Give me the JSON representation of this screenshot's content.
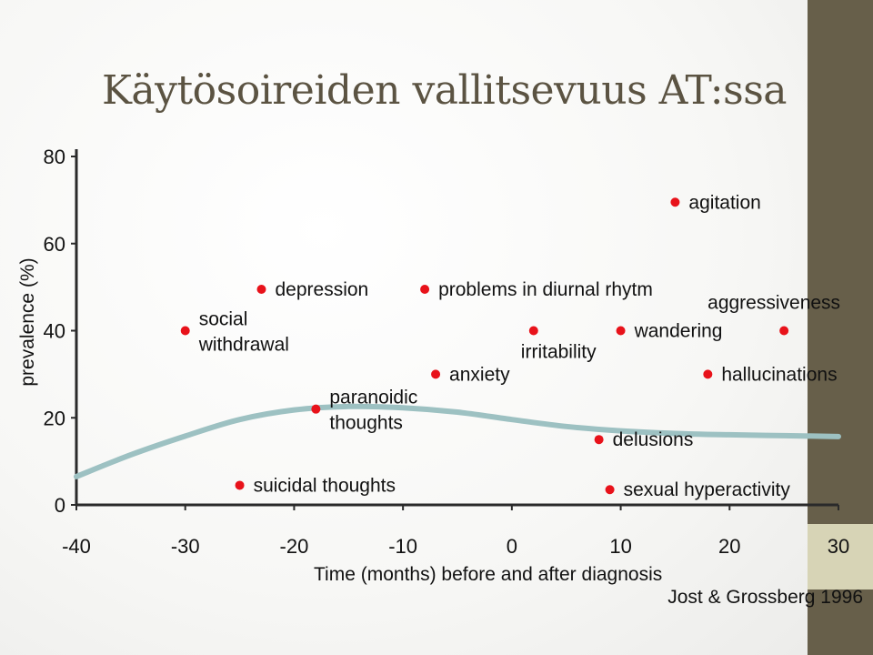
{
  "slide": {
    "title": "Käytösoireiden vallitsevuus AT:ssa",
    "source": "Jost & Grossberg 1996"
  },
  "colors": {
    "title": "#5b5342",
    "accent_bar": "#675f4a",
    "accent_block": "#d7d4b6",
    "curve": "#9dc1c2",
    "marker": "#e8121a",
    "axis": "#2a2a2a"
  },
  "chart_data": {
    "type": "scatter",
    "xlabel": "Time (months) before and after diagnosis",
    "ylabel": "prevalence (%)",
    "xlim": [
      -40,
      30
    ],
    "ylim": [
      0,
      80
    ],
    "x_ticks": [
      "-40",
      "-30",
      "-20",
      "-10",
      "0",
      "10",
      "20",
      "30"
    ],
    "y_ticks": [
      "0",
      "20",
      "40",
      "60",
      "80"
    ],
    "points": [
      {
        "label": "social\nwithdrawal",
        "x": -30,
        "y": 40,
        "label_side": "right"
      },
      {
        "label": "depression",
        "x": -23,
        "y": 49.5,
        "label_side": "right"
      },
      {
        "label": "suicidal thoughts",
        "x": -25,
        "y": 4.5,
        "label_side": "right"
      },
      {
        "label": "paranoidic\nthoughts",
        "x": -18,
        "y": 22,
        "label_side": "right"
      },
      {
        "label": "problems in diurnal rhytm",
        "x": -8,
        "y": 49.5,
        "label_side": "right"
      },
      {
        "label": "anxiety",
        "x": -7,
        "y": 30,
        "label_side": "right"
      },
      {
        "label": "irritability",
        "x": 2,
        "y": 40,
        "label_side": "below"
      },
      {
        "label": "delusions",
        "x": 8,
        "y": 15,
        "label_side": "right"
      },
      {
        "label": "sexual hyperactivity",
        "x": 9,
        "y": 3.5,
        "label_side": "right"
      },
      {
        "label": "wandering",
        "x": 10,
        "y": 40,
        "label_side": "right"
      },
      {
        "label": "agitation",
        "x": 15,
        "y": 69.5,
        "label_side": "right"
      },
      {
        "label": "hallucinations",
        "x": 18,
        "y": 30,
        "label_side": "right"
      },
      {
        "label": "aggressiveness",
        "x": 25,
        "y": 40,
        "label_side": "above"
      }
    ],
    "trend": {
      "x": [
        -40,
        -35,
        -30,
        -25,
        -20,
        -15,
        -10,
        -5,
        0,
        5,
        10,
        15,
        20,
        25,
        30
      ],
      "y": [
        6.5,
        11.5,
        15.8,
        19.6,
        21.8,
        22.6,
        22.3,
        21.3,
        19.6,
        18,
        17,
        16.4,
        16.1,
        15.9,
        15.7
      ]
    }
  }
}
